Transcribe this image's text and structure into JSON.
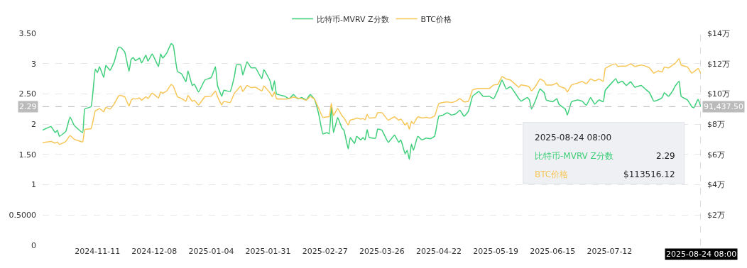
{
  "chart_data": {
    "type": "line",
    "x": [
      "2024-10-16",
      "2024-10-20",
      "2024-10-22",
      "2024-10-23",
      "2024-10-24",
      "2024-10-27",
      "2024-10-29",
      "2024-10-31",
      "2024-11-04",
      "2024-11-05",
      "2024-11-08",
      "2024-11-10",
      "2024-11-11",
      "2024-11-12",
      "2024-11-14",
      "2024-11-15",
      "2024-11-17",
      "2024-11-19",
      "2024-11-21",
      "2024-11-22",
      "2024-11-24",
      "2024-11-26",
      "2024-11-27",
      "2024-11-28",
      "2024-11-29",
      "2024-12-01",
      "2024-12-02",
      "2024-12-04",
      "2024-12-05",
      "2024-12-07",
      "2024-12-10",
      "2024-12-11",
      "2024-12-12",
      "2024-12-14",
      "2024-12-16",
      "2024-12-17",
      "2024-12-19",
      "2024-12-21",
      "2024-12-23",
      "2024-12-24",
      "2024-12-26",
      "2024-12-27",
      "2024-12-29",
      "2025-01-01",
      "2025-01-04",
      "2025-01-06",
      "2025-01-07",
      "2025-01-09",
      "2025-01-10",
      "2025-01-13",
      "2025-01-15",
      "2025-01-16",
      "2025-01-18",
      "2025-01-19",
      "2025-01-21",
      "2025-01-23",
      "2025-01-25",
      "2025-01-28",
      "2025-01-29",
      "2025-02-01",
      "2025-02-02",
      "2025-02-03",
      "2025-02-04",
      "2025-02-08",
      "2025-02-10",
      "2025-02-12",
      "2025-02-14",
      "2025-02-16",
      "2025-02-18",
      "2025-02-20",
      "2025-02-22",
      "2025-02-24",
      "2025-02-26",
      "2025-02-28",
      "2025-03-01",
      "2025-03-02",
      "2025-03-03",
      "2025-03-05",
      "2025-03-07",
      "2025-03-08",
      "2025-03-10",
      "2025-03-11",
      "2025-03-13",
      "2025-03-14",
      "2025-03-16",
      "2025-03-17",
      "2025-03-18",
      "2025-03-19",
      "2025-03-20",
      "2025-03-23",
      "2025-03-24",
      "2025-03-26",
      "2025-03-29",
      "2025-04-01",
      "2025-04-03",
      "2025-04-04",
      "2025-04-06",
      "2025-04-07",
      "2025-04-08",
      "2025-04-09",
      "2025-04-10",
      "2025-04-12",
      "2025-04-14",
      "2025-04-16",
      "2025-04-18",
      "2025-04-20",
      "2025-04-22",
      "2025-04-24",
      "2025-04-26",
      "2025-04-28",
      "2025-04-30",
      "2025-05-02",
      "2025-05-04",
      "2025-05-06",
      "2025-05-08",
      "2025-05-09",
      "2025-05-11",
      "2025-05-13",
      "2025-05-16",
      "2025-05-18",
      "2025-05-20",
      "2025-05-22",
      "2025-05-24",
      "2025-05-26",
      "2025-05-30",
      "2025-05-31",
      "2025-06-03",
      "2025-06-04",
      "2025-06-05",
      "2025-06-07",
      "2025-06-09",
      "2025-06-11",
      "2025-06-12",
      "2025-06-15",
      "2025-06-17",
      "2025-06-18",
      "2025-06-21",
      "2025-06-22",
      "2025-06-24",
      "2025-06-27",
      "2025-06-29",
      "2025-07-01",
      "2025-07-03",
      "2025-07-05",
      "2025-07-07",
      "2025-07-09",
      "2025-07-10",
      "2025-07-13",
      "2025-07-15",
      "2025-07-16",
      "2025-07-18",
      "2025-07-20",
      "2025-07-22",
      "2025-07-24",
      "2025-07-27",
      "2025-07-29",
      "2025-07-31",
      "2025-08-02",
      "2025-08-04",
      "2025-08-06",
      "2025-08-07",
      "2025-08-09",
      "2025-08-11",
      "2025-08-12",
      "2025-08-14",
      "2025-08-15",
      "2025-08-18",
      "2025-08-20",
      "2025-08-21",
      "2025-08-23",
      "2025-08-24T08:00"
    ],
    "series": [
      {
        "name": "比特币-MVRV Z分数",
        "color": "#3ecf7a",
        "values": [
          1.9,
          1.96,
          1.86,
          1.9,
          1.8,
          1.88,
          2.12,
          1.98,
          1.86,
          2.25,
          2.29,
          2.91,
          2.85,
          2.95,
          2.77,
          2.97,
          2.89,
          3.03,
          3.27,
          3.27,
          3.19,
          2.87,
          3.07,
          3.1,
          3.05,
          3.09,
          3.01,
          3.14,
          3.04,
          3.16,
          2.95,
          3.16,
          3.09,
          3.18,
          3.33,
          3.3,
          2.87,
          2.83,
          2.7,
          2.88,
          2.64,
          2.66,
          2.53,
          2.73,
          2.77,
          2.95,
          2.64,
          2.46,
          2.56,
          2.54,
          2.79,
          2.98,
          2.98,
          2.81,
          3.03,
          2.93,
          2.93,
          2.75,
          2.9,
          2.71,
          2.55,
          2.72,
          2.5,
          2.46,
          2.42,
          2.49,
          2.42,
          2.44,
          2.4,
          2.49,
          2.41,
          2.17,
          1.84,
          1.86,
          1.84,
          2.31,
          1.86,
          2.11,
          1.94,
          1.9,
          1.59,
          1.78,
          1.68,
          1.8,
          1.74,
          1.78,
          1.74,
          1.91,
          1.78,
          1.77,
          1.92,
          1.9,
          1.7,
          1.82,
          1.7,
          1.74,
          1.51,
          1.57,
          1.42,
          1.67,
          1.57,
          1.8,
          1.74,
          1.77,
          1.76,
          1.8,
          2.13,
          2.15,
          2.19,
          2.15,
          2.17,
          2.23,
          2.13,
          2.21,
          2.46,
          2.49,
          2.54,
          2.46,
          2.46,
          2.42,
          2.56,
          2.73,
          2.58,
          2.62,
          2.42,
          2.38,
          2.44,
          2.4,
          2.25,
          2.4,
          2.58,
          2.52,
          2.4,
          2.37,
          2.42,
          2.33,
          2.25,
          2.15,
          2.37,
          2.4,
          2.38,
          2.31,
          2.44,
          2.33,
          2.4,
          2.37,
          2.56,
          2.68,
          2.75,
          2.68,
          2.71,
          2.64,
          2.7,
          2.61,
          2.64,
          2.58,
          2.52,
          2.38,
          2.4,
          2.44,
          2.52,
          2.46,
          2.55,
          2.62,
          2.71,
          2.46,
          2.4,
          2.29,
          2.27,
          2.41,
          2.29
        ]
      },
      {
        "name": "BTC价格",
        "color": "#f7c657",
        "axis": "y2",
        "values": [
          6.78,
          6.86,
          6.75,
          6.82,
          6.66,
          6.86,
          7.25,
          7.01,
          6.83,
          7.64,
          7.71,
          8.88,
          8.95,
          9.04,
          8.81,
          9.11,
          9.0,
          9.35,
          9.85,
          9.9,
          9.8,
          9.19,
          9.58,
          9.69,
          9.66,
          9.73,
          9.58,
          9.81,
          9.69,
          10.05,
          9.73,
          10.13,
          10.05,
          10.21,
          10.63,
          10.52,
          9.81,
          9.69,
          9.51,
          9.9,
          9.51,
          9.58,
          9.27,
          9.81,
          9.85,
          10.2,
          9.82,
          9.27,
          9.5,
          9.43,
          10.05,
          10.2,
          10.52,
          10.16,
          10.56,
          10.41,
          10.44,
          10.2,
          10.52,
          10.05,
          9.82,
          10.13,
          9.69,
          9.66,
          9.69,
          9.79,
          9.72,
          9.69,
          9.58,
          9.82,
          9.66,
          9.04,
          8.45,
          8.49,
          8.49,
          9.38,
          8.57,
          9.04,
          8.57,
          8.41,
          7.95,
          8.26,
          8.34,
          8.41,
          8.34,
          8.37,
          8.29,
          8.65,
          8.41,
          8.45,
          8.76,
          8.76,
          8.26,
          8.49,
          8.26,
          8.34,
          7.95,
          8.1,
          7.67,
          8.18,
          8.03,
          8.49,
          8.41,
          8.45,
          8.41,
          8.54,
          9.35,
          9.43,
          9.47,
          9.43,
          9.51,
          9.69,
          9.47,
          9.51,
          10.25,
          10.31,
          10.36,
          10.36,
          10.36,
          10.59,
          10.62,
          11.14,
          10.98,
          10.91,
          10.44,
          10.59,
          10.52,
          10.44,
          10.2,
          10.52,
          10.98,
          10.83,
          10.59,
          10.59,
          10.72,
          10.52,
          10.36,
          10.13,
          10.59,
          10.72,
          10.83,
          10.67,
          10.98,
          10.86,
          10.98,
          10.83,
          11.68,
          11.91,
          11.99,
          11.81,
          11.84,
          11.84,
          11.99,
          11.81,
          11.91,
          11.84,
          11.71,
          11.37,
          11.52,
          11.45,
          11.77,
          11.71,
          11.91,
          11.99,
          12.33,
          11.91,
          11.77,
          11.37,
          11.45,
          11.68,
          11.35
        ]
      }
    ],
    "xlim": [
      "2024-10-16",
      "2025-08-24T08:00"
    ],
    "xticks": [
      "2024-11-11",
      "2024-12-08",
      "2025-01-04",
      "2025-01-31",
      "2025-02-27",
      "2025-03-26",
      "2025-04-22",
      "2025-05-19",
      "2025-06-15",
      "2025-07-12"
    ],
    "ylim": [
      0,
      3.5
    ],
    "yticks": [
      0,
      {
        "value": 0.5,
        "label": "0.5000"
      },
      1,
      {
        "value": 1.5,
        "label": "1.50"
      },
      2,
      {
        "value": 2.5,
        "label": "2.50"
      },
      3,
      {
        "value": 3.5,
        "label": "3.50"
      }
    ],
    "y2lim": [
      0,
      14
    ],
    "y2ticks": [
      {
        "value": 2,
        "label": "$2万"
      },
      {
        "value": 4,
        "label": "$4万"
      },
      {
        "value": 6,
        "label": "$6万"
      },
      {
        "value": 8,
        "label": "$8万"
      },
      {
        "value": 10,
        "label": "$10万"
      },
      {
        "value": 12,
        "label": "$12万"
      },
      {
        "value": 14,
        "label": "$14万"
      }
    ],
    "ref_lines": [
      {
        "axis": "y",
        "value": 2.29,
        "label": "2.29",
        "color": "#bbbbbb",
        "line_style": "dashed"
      },
      {
        "axis": "x",
        "value": "2025-08-24T08:00",
        "label": "2025-08-24 08:00",
        "color": "#bbbbbb",
        "line_style": "dashed"
      }
    ],
    "annotations": [
      "91,437.50",
      "2025-08-24 08:00",
      "比特币-MVRV Z分数",
      "2.29",
      "BTC价格",
      "$113516.12"
    ],
    "grid": "y",
    "legend": "top",
    "marker": "none",
    "line_style": "solid"
  }
}
